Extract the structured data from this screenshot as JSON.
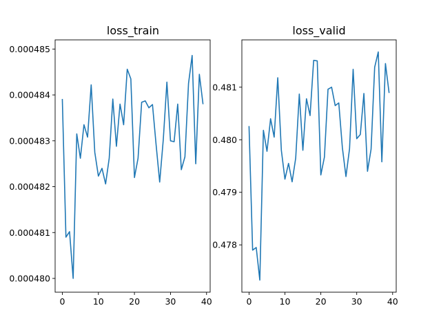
{
  "chart_data": [
    {
      "type": "line",
      "title": "loss_train",
      "xlabel": "",
      "ylabel": "",
      "xlim": [
        -2,
        41
      ],
      "ylim": [
        0.0004797,
        0.0004852
      ],
      "x_ticks": [
        0,
        10,
        20,
        30,
        40
      ],
      "x_tick_labels": [
        "0",
        "10",
        "20",
        "30",
        "40"
      ],
      "y_ticks": [
        0.00048,
        0.000481,
        0.000482,
        0.000483,
        0.000484,
        0.000485
      ],
      "y_tick_labels": [
        "0.000480",
        "0.000481",
        "0.000482",
        "0.000483",
        "0.000484",
        "0.000485"
      ],
      "grid": false,
      "color": "#1f77b4",
      "series": [
        {
          "x": [
            0,
            1,
            2,
            3,
            4,
            5,
            6,
            7,
            8,
            9,
            10,
            11,
            12,
            13,
            14,
            15,
            16,
            17,
            18,
            19,
            20,
            21,
            22,
            23,
            24,
            25,
            26,
            27,
            28,
            29,
            30,
            31,
            32,
            33,
            34,
            35,
            36,
            37,
            38,
            39
          ],
          "values": [
            0.0004839,
            0.0004809,
            0.00048102,
            0.00048,
            0.00048315,
            0.00048262,
            0.00048335,
            0.00048308,
            0.00048422,
            0.00048275,
            0.00048223,
            0.0004824,
            0.00048206,
            0.00048262,
            0.00048391,
            0.00048288,
            0.0004838,
            0.00048335,
            0.00048456,
            0.00048435,
            0.0004822,
            0.00048262,
            0.00048384,
            0.00048387,
            0.00048372,
            0.00048379,
            0.00048292,
            0.0004821,
            0.00048303,
            0.00048428,
            0.000483,
            0.00048298,
            0.0004838,
            0.00048237,
            0.00048265,
            0.00048425,
            0.00048486,
            0.0004825,
            0.00048445,
            0.00048381
          ]
        }
      ]
    },
    {
      "type": "line",
      "title": "loss_valid",
      "xlabel": "",
      "ylabel": "",
      "xlim": [
        -2,
        41
      ],
      "ylim": [
        0.4771,
        0.4819
      ],
      "x_ticks": [
        0,
        10,
        20,
        30,
        40
      ],
      "x_tick_labels": [
        "0",
        "10",
        "20",
        "30",
        "40"
      ],
      "y_ticks": [
        0.478,
        0.479,
        0.48,
        0.481
      ],
      "y_tick_labels": [
        "0.478",
        "0.479",
        "0.480",
        "0.481"
      ],
      "grid": false,
      "color": "#1f77b4",
      "series": [
        {
          "x": [
            0,
            1,
            2,
            3,
            4,
            5,
            6,
            7,
            8,
            9,
            10,
            11,
            12,
            13,
            14,
            15,
            16,
            17,
            18,
            19,
            20,
            21,
            22,
            23,
            24,
            25,
            26,
            27,
            28,
            29,
            30,
            31,
            32,
            33,
            34,
            35,
            36,
            37,
            38,
            39
          ],
          "values": [
            0.48025,
            0.4779,
            0.47795,
            0.47733,
            0.48018,
            0.47978,
            0.4804,
            0.48005,
            0.48118,
            0.4798,
            0.47925,
            0.47955,
            0.4792,
            0.47965,
            0.48087,
            0.4798,
            0.48078,
            0.48046,
            0.48151,
            0.4815,
            0.47933,
            0.47967,
            0.48096,
            0.481,
            0.48065,
            0.4807,
            0.47985,
            0.4793,
            0.47983,
            0.48134,
            0.48002,
            0.4801,
            0.48088,
            0.4794,
            0.47982,
            0.48138,
            0.48167,
            0.47958,
            0.48145,
            0.4809
          ]
        }
      ]
    }
  ]
}
